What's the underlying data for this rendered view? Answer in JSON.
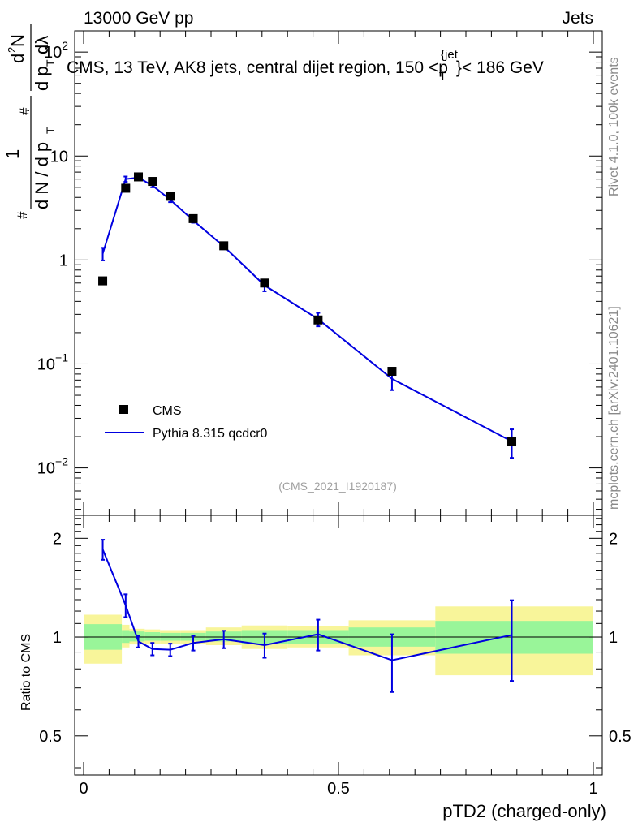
{
  "header": {
    "left": "13000 GeV pp",
    "right": "Jets"
  },
  "title": {
    "main": "CMS, 13 TeV, AK8 jets, central dijet region, 150 <p",
    "sub_T": "T",
    "sup_jet": "{jet",
    "tail": "}< 186 GeV"
  },
  "side_labels": {
    "rivet": "Rivet 4.1.0,  100k events",
    "mcplots": "mcplots.cern.ch [arXiv:2401.10621]"
  },
  "analysis_id": "(CMS_2021_I1920187)",
  "y_label_main": {
    "hash_top": "#",
    "one": "1",
    "dN": "d N / d p",
    "T1": "T",
    "hash_bottom": "#",
    "d2N": "d",
    "two": "2",
    "N": "N",
    "dpT": "d p",
    "T2": "T",
    "dlambda": "dλ"
  },
  "ratio_label": "Ratio to CMS",
  "x_label": "pTD2 (charged-only)",
  "legend": {
    "cms": "CMS",
    "pythia": "Pythia 8.315 qcdcr0"
  },
  "colors": {
    "pythia": "#0000e0",
    "band_green": "#99f599",
    "band_yellow": "#f8f59a"
  },
  "main_ticks": [
    {
      "base": "10",
      "exp": "2",
      "value": 100
    },
    {
      "base": "10",
      "exp": "",
      "value": 10
    },
    {
      "base": "1",
      "exp": "",
      "value": 1
    },
    {
      "base": "10",
      "exp": "−1",
      "value": 0.1
    },
    {
      "base": "10",
      "exp": "−2",
      "value": 0.01
    }
  ],
  "ratio_ticks": [
    {
      "label": "2",
      "value": 2
    },
    {
      "label": "1",
      "value": 1
    },
    {
      "label": "0.5",
      "value": 0.5
    }
  ],
  "x_ticks": [
    {
      "label": "0",
      "value": 0
    },
    {
      "label": "0.5",
      "value": 0.5
    },
    {
      "label": "1",
      "value": 1
    }
  ],
  "chart_data": {
    "type": "scatter",
    "x_range": [
      0,
      1
    ],
    "main_y_range_log": [
      0.0035,
      160
    ],
    "ratio_y_range_log": [
      0.38,
      2.35
    ],
    "cms": {
      "x": [
        0.0375,
        0.0825,
        0.1075,
        0.135,
        0.17,
        0.215,
        0.275,
        0.355,
        0.46,
        0.605,
        0.84
      ],
      "y": [
        0.63,
        4.9,
        6.3,
        5.7,
        4.1,
        2.5,
        1.37,
        0.6,
        0.265,
        0.085,
        0.0178
      ],
      "xlo": [
        0.0,
        0.075,
        0.09,
        0.12,
        0.15,
        0.19,
        0.24,
        0.31,
        0.4,
        0.52,
        0.69
      ],
      "xhi": [
        0.075,
        0.09,
        0.12,
        0.15,
        0.19,
        0.24,
        0.31,
        0.4,
        0.52,
        0.69,
        1.0
      ]
    },
    "pythia": {
      "x": [
        0.0375,
        0.0825,
        0.1075,
        0.135,
        0.17,
        0.215,
        0.275,
        0.355,
        0.46,
        0.605,
        0.84
      ],
      "y": [
        1.15,
        6.0,
        6.2,
        5.2,
        3.8,
        2.4,
        1.35,
        0.57,
        0.27,
        0.072,
        0.018
      ],
      "yerr": [
        0.16,
        0.35,
        0.25,
        0.2,
        0.2,
        0.12,
        0.08,
        0.07,
        0.04,
        0.016,
        0.0055
      ]
    },
    "ratio": {
      "x": [
        0.0375,
        0.0825,
        0.1075,
        0.135,
        0.17,
        0.215,
        0.275,
        0.355,
        0.46,
        0.605,
        0.84
      ],
      "y": [
        1.85,
        1.25,
        0.97,
        0.92,
        0.915,
        0.96,
        0.985,
        0.945,
        1.02,
        0.85,
        1.015
      ],
      "yerr": [
        0.13,
        0.1,
        0.04,
        0.04,
        0.04,
        0.05,
        0.06,
        0.08,
        0.11,
        0.17,
        0.28
      ]
    },
    "bands": {
      "xlo": [
        0.0,
        0.075,
        0.09,
        0.12,
        0.15,
        0.19,
        0.24,
        0.31,
        0.4,
        0.52,
        0.69
      ],
      "xhi": [
        0.075,
        0.09,
        0.12,
        0.15,
        0.19,
        0.24,
        0.31,
        0.4,
        0.52,
        0.69,
        1.0
      ],
      "green_lo": [
        0.915,
        0.96,
        0.97,
        0.975,
        0.975,
        0.975,
        0.97,
        0.955,
        0.955,
        0.935,
        0.89
      ],
      "green_hi": [
        1.095,
        1.05,
        1.04,
        1.035,
        1.03,
        1.03,
        1.04,
        1.05,
        1.05,
        1.07,
        1.12
      ],
      "yellow_lo": [
        0.83,
        0.93,
        0.95,
        0.955,
        0.955,
        0.955,
        0.945,
        0.92,
        0.93,
        0.88,
        0.765
      ],
      "yellow_hi": [
        1.17,
        1.09,
        1.06,
        1.055,
        1.05,
        1.05,
        1.07,
        1.085,
        1.08,
        1.125,
        1.24
      ]
    }
  }
}
